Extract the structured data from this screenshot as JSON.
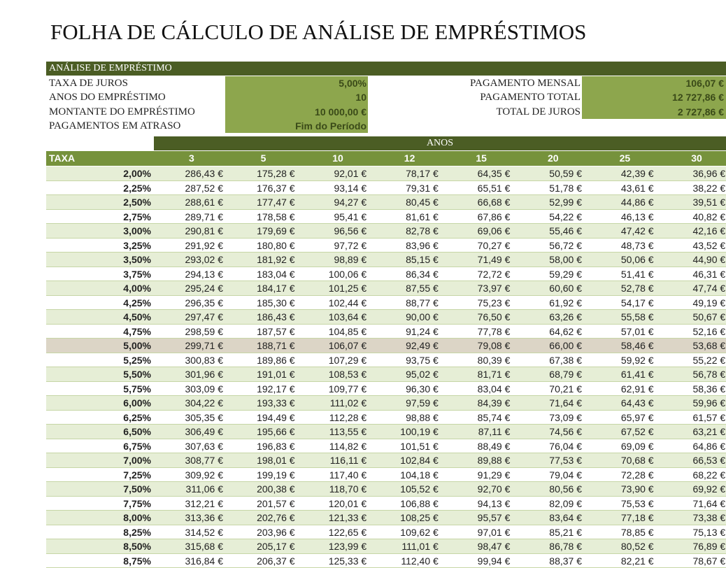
{
  "header": {
    "title": "FOLHA DE CÁLCULO DE ANÁLISE DE EMPRÉSTIMOS"
  },
  "summary": {
    "title": "ANÁLISE DE EMPRÉSTIMO",
    "left": [
      {
        "label": "TAXA DE JUROS",
        "value": "5,00%"
      },
      {
        "label": "ANOS DO EMPRÉSTIMO",
        "value": "10"
      },
      {
        "label": "MONTANTE DO EMPRÉSTIMO",
        "value": "10 000,00 €"
      },
      {
        "label": "PAGAMENTOS EM ATRASO",
        "value": "Fim do Período"
      }
    ],
    "right": [
      {
        "label": "PAGAMENTO MENSAL",
        "value": "106,07 €"
      },
      {
        "label": "PAGAMENTO TOTAL",
        "value": "12 727,86 €"
      },
      {
        "label": "TOTAL DE JUROS",
        "value": "2 727,86 €"
      }
    ]
  },
  "table": {
    "group_header": "ANOS",
    "columns": [
      "TAXA",
      "3",
      "5",
      "10",
      "12",
      "15",
      "20",
      "25",
      "30"
    ],
    "rows": [
      [
        "2,00%",
        "286,43 €",
        "175,28 €",
        "92,01 €",
        "78,17 €",
        "64,35 €",
        "50,59 €",
        "42,39 €",
        "36,96 €"
      ],
      [
        "2,25%",
        "287,52 €",
        "176,37 €",
        "93,14 €",
        "79,31 €",
        "65,51 €",
        "51,78 €",
        "43,61 €",
        "38,22 €"
      ],
      [
        "2,50%",
        "288,61 €",
        "177,47 €",
        "94,27 €",
        "80,45 €",
        "66,68 €",
        "52,99 €",
        "44,86 €",
        "39,51 €"
      ],
      [
        "2,75%",
        "289,71 €",
        "178,58 €",
        "95,41 €",
        "81,61 €",
        "67,86 €",
        "54,22 €",
        "46,13 €",
        "40,82 €"
      ],
      [
        "3,00%",
        "290,81 €",
        "179,69 €",
        "96,56 €",
        "82,78 €",
        "69,06 €",
        "55,46 €",
        "47,42 €",
        "42,16 €"
      ],
      [
        "3,25%",
        "291,92 €",
        "180,80 €",
        "97,72 €",
        "83,96 €",
        "70,27 €",
        "56,72 €",
        "48,73 €",
        "43,52 €"
      ],
      [
        "3,50%",
        "293,02 €",
        "181,92 €",
        "98,89 €",
        "85,15 €",
        "71,49 €",
        "58,00 €",
        "50,06 €",
        "44,90 €"
      ],
      [
        "3,75%",
        "294,13 €",
        "183,04 €",
        "100,06 €",
        "86,34 €",
        "72,72 €",
        "59,29 €",
        "51,41 €",
        "46,31 €"
      ],
      [
        "4,00%",
        "295,24 €",
        "184,17 €",
        "101,25 €",
        "87,55 €",
        "73,97 €",
        "60,60 €",
        "52,78 €",
        "47,74 €"
      ],
      [
        "4,25%",
        "296,35 €",
        "185,30 €",
        "102,44 €",
        "88,77 €",
        "75,23 €",
        "61,92 €",
        "54,17 €",
        "49,19 €"
      ],
      [
        "4,50%",
        "297,47 €",
        "186,43 €",
        "103,64 €",
        "90,00 €",
        "76,50 €",
        "63,26 €",
        "55,58 €",
        "50,67 €"
      ],
      [
        "4,75%",
        "298,59 €",
        "187,57 €",
        "104,85 €",
        "91,24 €",
        "77,78 €",
        "64,62 €",
        "57,01 €",
        "52,16 €"
      ],
      [
        "5,00%",
        "299,71 €",
        "188,71 €",
        "106,07 €",
        "92,49 €",
        "79,08 €",
        "66,00 €",
        "58,46 €",
        "53,68 €"
      ],
      [
        "5,25%",
        "300,83 €",
        "189,86 €",
        "107,29 €",
        "93,75 €",
        "80,39 €",
        "67,38 €",
        "59,92 €",
        "55,22 €"
      ],
      [
        "5,50%",
        "301,96 €",
        "191,01 €",
        "108,53 €",
        "95,02 €",
        "81,71 €",
        "68,79 €",
        "61,41 €",
        "56,78 €"
      ],
      [
        "5,75%",
        "303,09 €",
        "192,17 €",
        "109,77 €",
        "96,30 €",
        "83,04 €",
        "70,21 €",
        "62,91 €",
        "58,36 €"
      ],
      [
        "6,00%",
        "304,22 €",
        "193,33 €",
        "111,02 €",
        "97,59 €",
        "84,39 €",
        "71,64 €",
        "64,43 €",
        "59,96 €"
      ],
      [
        "6,25%",
        "305,35 €",
        "194,49 €",
        "112,28 €",
        "98,88 €",
        "85,74 €",
        "73,09 €",
        "65,97 €",
        "61,57 €"
      ],
      [
        "6,50%",
        "306,49 €",
        "195,66 €",
        "113,55 €",
        "100,19 €",
        "87,11 €",
        "74,56 €",
        "67,52 €",
        "63,21 €"
      ],
      [
        "6,75%",
        "307,63 €",
        "196,83 €",
        "114,82 €",
        "101,51 €",
        "88,49 €",
        "76,04 €",
        "69,09 €",
        "64,86 €"
      ],
      [
        "7,00%",
        "308,77 €",
        "198,01 €",
        "116,11 €",
        "102,84 €",
        "89,88 €",
        "77,53 €",
        "70,68 €",
        "66,53 €"
      ],
      [
        "7,25%",
        "309,92 €",
        "199,19 €",
        "117,40 €",
        "104,18 €",
        "91,29 €",
        "79,04 €",
        "72,28 €",
        "68,22 €"
      ],
      [
        "7,50%",
        "311,06 €",
        "200,38 €",
        "118,70 €",
        "105,52 €",
        "92,70 €",
        "80,56 €",
        "73,90 €",
        "69,92 €"
      ],
      [
        "7,75%",
        "312,21 €",
        "201,57 €",
        "120,01 €",
        "106,88 €",
        "94,13 €",
        "82,09 €",
        "75,53 €",
        "71,64 €"
      ],
      [
        "8,00%",
        "313,36 €",
        "202,76 €",
        "121,33 €",
        "108,25 €",
        "95,57 €",
        "83,64 €",
        "77,18 €",
        "73,38 €"
      ],
      [
        "8,25%",
        "314,52 €",
        "203,96 €",
        "122,65 €",
        "109,62 €",
        "97,01 €",
        "85,21 €",
        "78,85 €",
        "75,13 €"
      ],
      [
        "8,50%",
        "315,68 €",
        "205,17 €",
        "123,99 €",
        "111,01 €",
        "98,47 €",
        "86,78 €",
        "80,52 €",
        "76,89 €"
      ],
      [
        "8,75%",
        "316,84 €",
        "206,37 €",
        "125,33 €",
        "112,40 €",
        "99,94 €",
        "88,37 €",
        "82,21 €",
        "78,67 €"
      ]
    ]
  }
}
